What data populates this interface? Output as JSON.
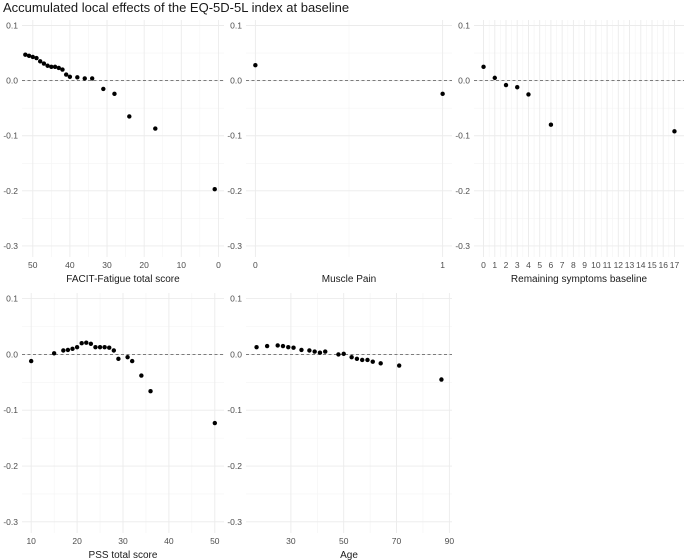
{
  "title": "Accumulated local effects of the EQ-5D-5L index at baseline",
  "chart_data": [
    {
      "type": "scatter",
      "xlabel": "FACIT-Fatigue total score",
      "x_reversed": true,
      "xlim": [
        52.9,
        -1.5
      ],
      "xticks": [
        50,
        40,
        30,
        20,
        10,
        0
      ],
      "ylim": [
        -0.32,
        0.11
      ],
      "yticks": [
        0.1,
        0.0,
        -0.1,
        -0.2,
        -0.3
      ],
      "ytick_labels": [
        "0.1",
        "0.0",
        "-0.1",
        "-0.2",
        "-0.3"
      ],
      "reference_line": 0,
      "x": [
        52,
        51,
        50,
        49,
        48,
        47,
        46,
        45,
        44,
        43,
        42,
        41,
        40,
        38,
        36,
        34,
        31,
        28,
        24,
        17,
        1
      ],
      "y": [
        0.047,
        0.045,
        0.043,
        0.041,
        0.035,
        0.031,
        0.027,
        0.025,
        0.025,
        0.023,
        0.02,
        0.011,
        0.007,
        0.006,
        0.004,
        0.004,
        -0.015,
        -0.024,
        -0.065,
        -0.087,
        -0.197
      ]
    },
    {
      "type": "scatter",
      "xlabel": "Muscle Pain",
      "xlim": [
        -0.05,
        1.05
      ],
      "xticks": [
        0,
        1
      ],
      "ylim": [
        -0.32,
        0.11
      ],
      "yticks": [
        0.1,
        0.0,
        -0.1,
        -0.2,
        -0.3
      ],
      "ytick_labels": [
        "0.1",
        "0.0",
        "-0.1",
        "-0.2",
        "-0.3"
      ],
      "reference_line": 0,
      "x": [
        0,
        1
      ],
      "y": [
        0.028,
        -0.024
      ]
    },
    {
      "type": "scatter",
      "xlabel": "Remaining symptoms baseline",
      "xlim": [
        -0.85,
        17.85
      ],
      "xticks": [
        0,
        1,
        2,
        3,
        4,
        5,
        6,
        7,
        8,
        9,
        10,
        11,
        12,
        13,
        14,
        15,
        16,
        17
      ],
      "ylim": [
        -0.32,
        0.11
      ],
      "yticks": [
        0.1,
        0.0,
        -0.1,
        -0.2,
        -0.3
      ],
      "ytick_labels": [
        "0.1",
        "0.0",
        "-0.1",
        "-0.2",
        "-0.3"
      ],
      "reference_line": 0,
      "x": [
        0,
        1,
        2,
        3,
        4,
        6,
        17
      ],
      "y": [
        0.025,
        0.005,
        -0.008,
        -0.012,
        -0.025,
        -0.08,
        -0.092
      ]
    },
    {
      "type": "scatter",
      "xlabel": "PSS total score",
      "xlim": [
        8,
        52
      ],
      "xticks": [
        10,
        20,
        30,
        40,
        50
      ],
      "ylim": [
        -0.32,
        0.11
      ],
      "yticks": [
        0.1,
        0.0,
        -0.1,
        -0.2,
        -0.3
      ],
      "ytick_labels": [
        "0.1",
        "0.0",
        "-0.1",
        "-0.2",
        "-0.3"
      ],
      "reference_line": 0,
      "x": [
        10,
        15,
        17,
        18,
        19,
        20,
        21,
        22,
        23,
        24,
        25,
        26,
        27,
        28,
        29,
        31,
        32,
        34,
        36,
        50
      ],
      "y": [
        -0.012,
        0.002,
        0.007,
        0.008,
        0.01,
        0.013,
        0.02,
        0.021,
        0.019,
        0.013,
        0.013,
        0.013,
        0.012,
        0.007,
        -0.008,
        -0.005,
        -0.012,
        -0.038,
        -0.066,
        -0.123
      ]
    },
    {
      "type": "scatter",
      "xlabel": "Age",
      "xlim": [
        13,
        91
      ],
      "xticks": [
        30,
        50,
        70,
        90
      ],
      "ylim": [
        -0.32,
        0.11
      ],
      "yticks": [
        0.1,
        0.0,
        -0.1,
        -0.2,
        -0.3
      ],
      "ytick_labels": [
        "0.1",
        "0.0",
        "-0.1",
        "-0.2",
        "-0.3"
      ],
      "reference_line": 0,
      "x": [
        17,
        21,
        25,
        27,
        29,
        31,
        34,
        37,
        39,
        41,
        43,
        48,
        50,
        53,
        55,
        57,
        59,
        61,
        64,
        71,
        87
      ],
      "y": [
        0.013,
        0.015,
        0.016,
        0.015,
        0.013,
        0.012,
        0.008,
        0.007,
        0.005,
        0.003,
        0.005,
        0.0,
        0.001,
        -0.005,
        -0.008,
        -0.01,
        -0.01,
        -0.013,
        -0.016,
        -0.02,
        -0.045
      ]
    }
  ]
}
